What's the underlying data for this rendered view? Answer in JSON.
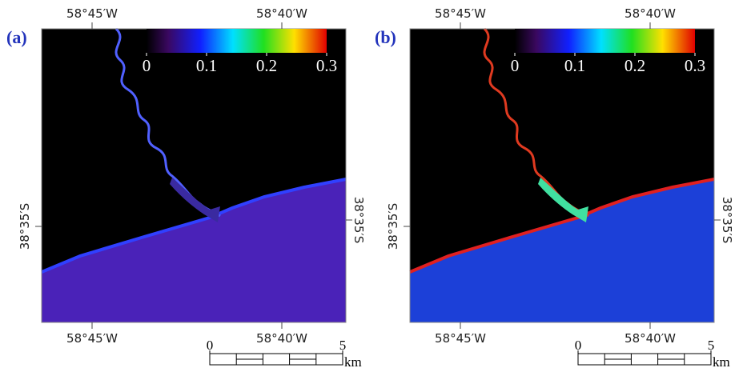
{
  "panels": [
    {
      "label": "(a)",
      "top_lon_labels": [
        "58°45′W",
        "58°40′W"
      ],
      "bottom_lon_labels": [
        "58°45′W",
        "58°40′W"
      ],
      "lat_label_left": "38°35′S",
      "lat_label_right": "38°35′S",
      "colorbar": {
        "range": [
          0,
          0.3
        ],
        "ticks": [
          0,
          0.1,
          0.2,
          0.3
        ]
      },
      "scale_bar": {
        "range": [
          0,
          5
        ],
        "ticks": [
          0,
          5
        ],
        "unit": "km"
      }
    },
    {
      "label": "(b)",
      "top_lon_labels": [
        "58°45′W",
        "58°40′W"
      ],
      "bottom_lon_labels": [
        "58°45′W",
        "58°40′W"
      ],
      "lat_label_left": "38°35′S",
      "lat_label_right": "38°35′S",
      "colorbar": {
        "range": [
          0,
          0.3
        ],
        "ticks": [
          0,
          0.1,
          0.2,
          0.3
        ]
      },
      "scale_bar": {
        "range": [
          0,
          5
        ],
        "ticks": [
          0,
          5
        ],
        "unit": "km"
      }
    }
  ]
}
